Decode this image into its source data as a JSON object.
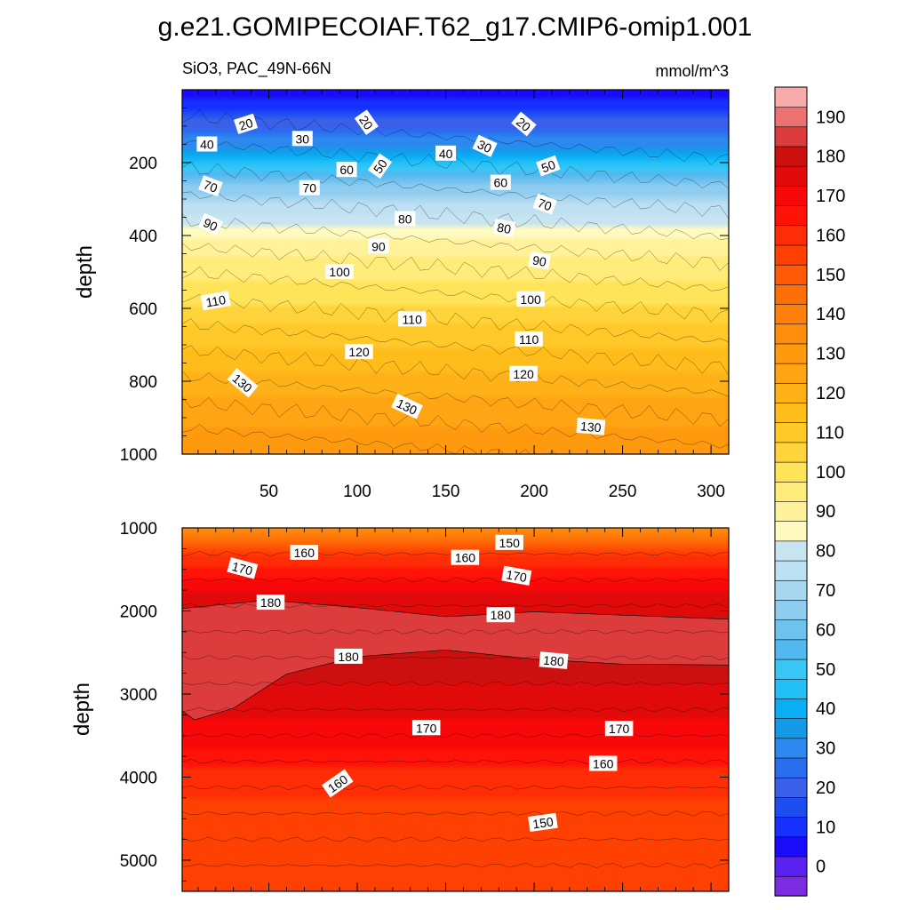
{
  "chart_data": {
    "type": "heatmap",
    "title": "g.e21.GOMIPECOIAF.T62_g17.CMIP6-omip1.001",
    "variable_label": "SiO3, PAC_49N-66N",
    "units_label": "mmol/m^3",
    "panels": [
      {
        "id": "upper",
        "ylabel": "depth",
        "ylim": [
          0,
          1000
        ],
        "yticks": [
          200,
          400,
          600,
          800,
          1000
        ],
        "xlim": [
          1,
          310
        ],
        "xticks": [
          50,
          100,
          150,
          200,
          250,
          300
        ],
        "depth_profile": [
          {
            "depth": 0,
            "left": 5,
            "right": 5
          },
          {
            "depth": 50,
            "left": 18,
            "right": 8
          },
          {
            "depth": 100,
            "left": 30,
            "right": 18
          },
          {
            "depth": 150,
            "left": 40,
            "right": 28
          },
          {
            "depth": 200,
            "left": 55,
            "right": 40
          },
          {
            "depth": 250,
            "left": 70,
            "right": 55
          },
          {
            "depth": 300,
            "left": 80,
            "right": 65
          },
          {
            "depth": 350,
            "left": 88,
            "right": 72
          },
          {
            "depth": 400,
            "left": 98,
            "right": 78
          },
          {
            "depth": 500,
            "left": 107,
            "right": 88
          },
          {
            "depth": 600,
            "left": 113,
            "right": 98
          },
          {
            "depth": 700,
            "left": 119,
            "right": 108
          },
          {
            "depth": 800,
            "left": 126,
            "right": 118
          },
          {
            "depth": 900,
            "left": 132,
            "right": 125
          },
          {
            "depth": 1000,
            "left": 136,
            "right": 132
          }
        ],
        "contour_labels": [
          {
            "value": "20",
            "time": 37,
            "depth": 95,
            "angle": -18
          },
          {
            "value": "20",
            "time": 105,
            "depth": 90,
            "angle": 55
          },
          {
            "value": "20",
            "time": 194,
            "depth": 95,
            "angle": 40
          },
          {
            "value": "30",
            "time": 69,
            "depth": 135,
            "angle": 0
          },
          {
            "value": "30",
            "time": 172,
            "depth": 155,
            "angle": 25
          },
          {
            "value": "40",
            "time": 15,
            "depth": 150,
            "angle": 0
          },
          {
            "value": "40",
            "time": 150,
            "depth": 175,
            "angle": 0
          },
          {
            "value": "50",
            "time": 113,
            "depth": 210,
            "angle": -55
          },
          {
            "value": "50",
            "time": 208,
            "depth": 210,
            "angle": -20
          },
          {
            "value": "60",
            "time": 94,
            "depth": 220,
            "angle": 0
          },
          {
            "value": "60",
            "time": 181,
            "depth": 255,
            "angle": 0
          },
          {
            "value": "70",
            "time": 17,
            "depth": 265,
            "angle": 20
          },
          {
            "value": "70",
            "time": 73,
            "depth": 270,
            "angle": 0
          },
          {
            "value": "70",
            "time": 206,
            "depth": 315,
            "angle": 20
          },
          {
            "value": "80",
            "time": 127,
            "depth": 355,
            "angle": 0
          },
          {
            "value": "80",
            "time": 183,
            "depth": 380,
            "angle": 10
          },
          {
            "value": "90",
            "time": 17,
            "depth": 370,
            "angle": 25
          },
          {
            "value": "90",
            "time": 112,
            "depth": 430,
            "angle": 0
          },
          {
            "value": "90",
            "time": 203,
            "depth": 470,
            "angle": 10
          },
          {
            "value": "100",
            "time": 90,
            "depth": 500,
            "angle": 0
          },
          {
            "value": "100",
            "time": 198,
            "depth": 575,
            "angle": 0
          },
          {
            "value": "110",
            "time": 20,
            "depth": 580,
            "angle": -10
          },
          {
            "value": "110",
            "time": 131,
            "depth": 630,
            "angle": 0
          },
          {
            "value": "110",
            "time": 197,
            "depth": 685,
            "angle": 0
          },
          {
            "value": "120",
            "time": 101,
            "depth": 720,
            "angle": 0
          },
          {
            "value": "120",
            "time": 194,
            "depth": 780,
            "angle": 0
          },
          {
            "value": "130",
            "time": 35,
            "depth": 805,
            "angle": 40
          },
          {
            "value": "130",
            "time": 128,
            "depth": 870,
            "angle": 25
          },
          {
            "value": "130",
            "time": 232,
            "depth": 925,
            "angle": 5
          }
        ]
      },
      {
        "id": "lower",
        "ylabel": "depth",
        "ylim": [
          1000,
          5375
        ],
        "yticks": [
          1000,
          2000,
          3000,
          4000,
          5000
        ],
        "xlim": [
          1,
          310
        ],
        "depth_profile": [
          {
            "depth": 1000,
            "left": 140,
            "right": 138
          },
          {
            "depth": 1150,
            "left": 152,
            "right": 145
          },
          {
            "depth": 1300,
            "left": 163,
            "right": 156
          },
          {
            "depth": 1500,
            "left": 170,
            "right": 164
          },
          {
            "depth": 1750,
            "left": 176,
            "right": 172
          },
          {
            "depth": 2000,
            "left": 181,
            "right": 178
          },
          {
            "depth": 2300,
            "left": 183,
            "right": 181
          },
          {
            "depth": 2600,
            "left": 182,
            "right": 181
          },
          {
            "depth": 2900,
            "left": 180,
            "right": 179
          },
          {
            "depth": 3200,
            "left": 177,
            "right": 176
          },
          {
            "depth": 3500,
            "left": 173,
            "right": 171
          },
          {
            "depth": 3800,
            "left": 168,
            "right": 166
          },
          {
            "depth": 4100,
            "left": 163,
            "right": 159
          },
          {
            "depth": 4500,
            "left": 162,
            "right": 153
          },
          {
            "depth": 5000,
            "left": 161,
            "right": 150
          },
          {
            "depth": 5375,
            "left": 160,
            "right": 152
          }
        ],
        "contour_labels": [
          {
            "value": "150",
            "time": 186,
            "depth": 1180,
            "angle": 0
          },
          {
            "value": "150",
            "time": 205,
            "depth": 4550,
            "angle": -8
          },
          {
            "value": "160",
            "time": 70,
            "depth": 1300,
            "angle": 0
          },
          {
            "value": "160",
            "time": 161,
            "depth": 1360,
            "angle": 0
          },
          {
            "value": "160",
            "time": 239,
            "depth": 3840,
            "angle": 0
          },
          {
            "value": "160",
            "time": 89,
            "depth": 4080,
            "angle": -35
          },
          {
            "value": "170",
            "time": 35,
            "depth": 1490,
            "angle": 15
          },
          {
            "value": "170",
            "time": 190,
            "depth": 1580,
            "angle": 10
          },
          {
            "value": "170",
            "time": 139,
            "depth": 3410,
            "angle": 0
          },
          {
            "value": "170",
            "time": 248,
            "depth": 3420,
            "angle": 0
          },
          {
            "value": "180",
            "time": 51,
            "depth": 1900,
            "angle": 0
          },
          {
            "value": "180",
            "time": 181,
            "depth": 2050,
            "angle": 0
          },
          {
            "value": "180",
            "time": 95,
            "depth": 2550,
            "angle": 0
          },
          {
            "value": "180",
            "time": 211,
            "depth": 2600,
            "angle": 5
          }
        ]
      }
    ],
    "colorbar": {
      "labels": [
        "0",
        "10",
        "20",
        "30",
        "40",
        "50",
        "60",
        "70",
        "80",
        "90",
        "100",
        "110",
        "120",
        "130",
        "140",
        "150",
        "160",
        "170",
        "180",
        "190"
      ],
      "min": -5,
      "max": 195,
      "step": 5,
      "colors": [
        "#7b2be0",
        "#5a22f0",
        "#1a0cfa",
        "#1530ff",
        "#1e4ef2",
        "#3a5fe8",
        "#2a6ef0",
        "#2d88ef",
        "#159ae8",
        "#0aaef5",
        "#22bff6",
        "#37c6f5",
        "#52b8ef",
        "#6fc1ee",
        "#8fcdf0",
        "#a8d6ef",
        "#bde0f2",
        "#c7e4f1",
        "#fffac0",
        "#fff29a",
        "#ffec7a",
        "#ffe45a",
        "#ffd43a",
        "#ffc92a",
        "#ffbd1c",
        "#ffb218",
        "#ffa513",
        "#ff9a0f",
        "#ff8e0d",
        "#ff800b",
        "#ff6f08",
        "#ff5a06",
        "#ff4003",
        "#ff2d05",
        "#ff1208",
        "#f80808",
        "#e00a0a",
        "#cc1010",
        "#dc3c3c",
        "#ec7272",
        "#f7abab"
      ]
    }
  }
}
